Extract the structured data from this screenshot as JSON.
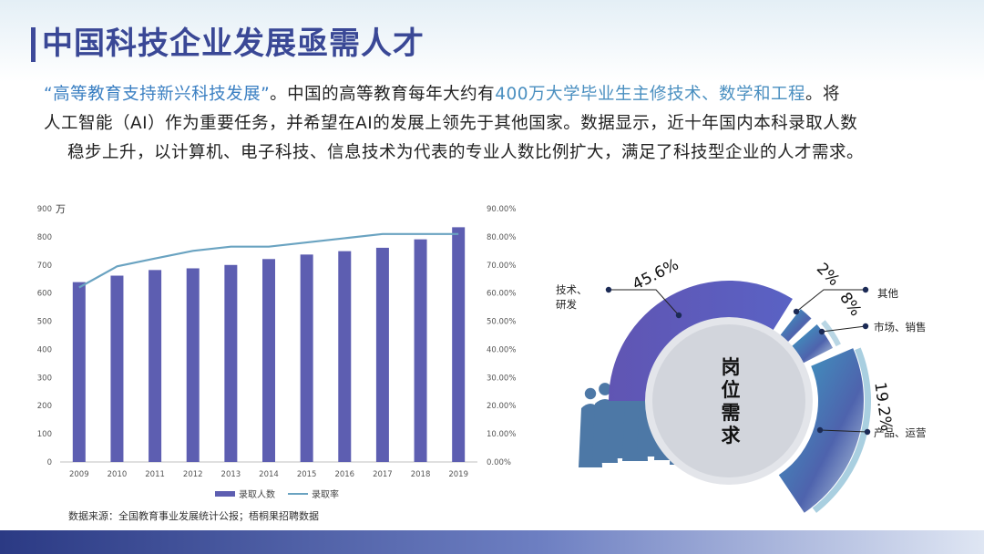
{
  "title": "中国科技企业发展亟需人才",
  "intro": {
    "quote": "“高等教育支持新兴科技发展”",
    "line1_after_quote": "。中国的高等教育每年大约有",
    "line1_highlight": "400万大学毕业生主修技术、数学和工程",
    "line1_end": "。将",
    "line2": "人工智能（AI）作为重要任务，并希望在AI的发展上领先于其他国家。数据显示，近十年国内本科录取人数",
    "line3": "稳步上升，以计算机、电子科技、信息技术为代表的专业人数比例扩大，满足了科技型企业的人才需求。"
  },
  "source": "数据来源：全国教育事业发展统计公报；梧桐果招聘数据",
  "colors": {
    "title": "#3a4896",
    "bar": "#5d5eb1",
    "line": "#6aa3c1",
    "highlight": "#4a8fc0",
    "donut_purple": "#5b55b2",
    "donut_teal": "#3d98bf"
  },
  "chart_data": [
    {
      "type": "bar",
      "title": "",
      "x": [
        "2009",
        "2010",
        "2011",
        "2012",
        "2013",
        "2014",
        "2015",
        "2016",
        "2017",
        "2018",
        "2019"
      ],
      "ylabel_unit": "万",
      "y_ticks": [
        "0",
        "100",
        "200",
        "300",
        "400",
        "500",
        "600",
        "700",
        "800",
        "900"
      ],
      "y2_ticks": [
        "0.00%",
        "10.00%",
        "20.00%",
        "30.00%",
        "40.00%",
        "50.00%",
        "60.00%",
        "70.00%",
        "80.00%",
        "90.00%"
      ],
      "ylim": [
        0,
        900
      ],
      "y2lim": [
        0,
        90
      ],
      "series": [
        {
          "name": "录取人数",
          "kind": "bar",
          "axis": "left",
          "values": [
            639,
            662,
            682,
            688,
            700,
            721,
            737,
            749,
            761,
            791,
            834
          ]
        },
        {
          "name": "录取率",
          "kind": "line",
          "axis": "right",
          "values": [
            62,
            69.5,
            72.3,
            75,
            76.5,
            76.5,
            78,
            79.5,
            81,
            81,
            81
          ]
        }
      ],
      "legend_position": "bottom",
      "grid": false
    },
    {
      "type": "pie",
      "title": "",
      "center_label": [
        "岗",
        "位",
        "需",
        "求"
      ],
      "slices": [
        {
          "label": "技术、研发",
          "value": 45.6,
          "value_label": "45.6%"
        },
        {
          "label": "其他",
          "value": 2,
          "value_label": "2%"
        },
        {
          "label": "市场、销售",
          "value": 8,
          "value_label": "8%"
        },
        {
          "label": "产品、运营",
          "value": 19.2,
          "value_label": "19.2%"
        }
      ]
    }
  ]
}
